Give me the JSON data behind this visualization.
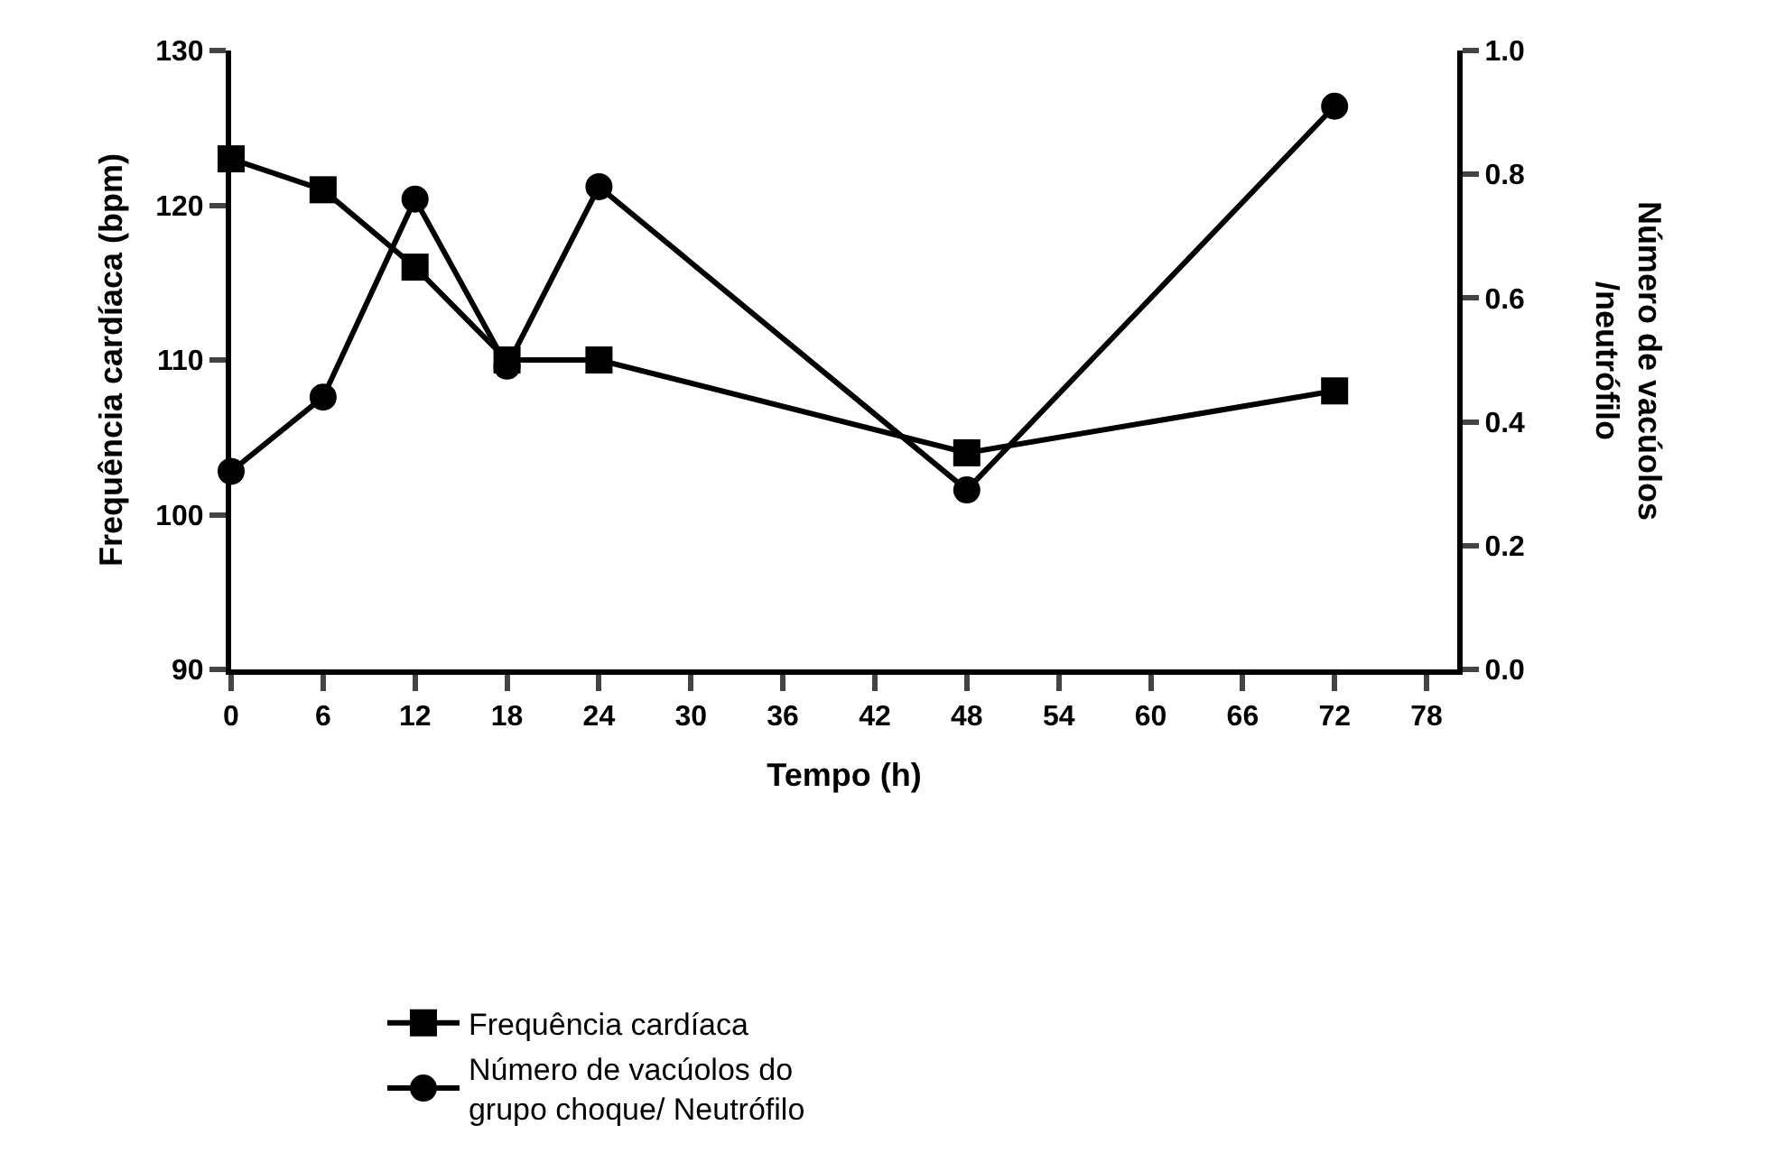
{
  "chart_data": {
    "type": "line",
    "xlabel": "Tempo (h)",
    "ylabel": "Frequência cardíaca (bpm)",
    "y2label": "Número de vacúolos\n/neutrófilo",
    "x": [
      0,
      6,
      12,
      18,
      24,
      48,
      72
    ],
    "series": [
      {
        "name": "Frequência cardíaca",
        "color": "#000000",
        "marker": "square",
        "values": [
          123,
          121,
          116,
          110,
          110,
          104,
          108
        ]
      },
      {
        "name": "Número de vacúolos do\ngrupo choque/ Neutrófilo",
        "color": "#000000",
        "marker": "circle",
        "axis": "y2",
        "values": [
          0.32,
          0.44,
          0.76,
          0.49,
          0.78,
          0.29,
          0.91
        ]
      }
    ],
    "xlim": [
      0,
      80
    ],
    "xticks": [
      0,
      6,
      12,
      18,
      24,
      30,
      36,
      42,
      48,
      54,
      60,
      66,
      72,
      78
    ],
    "ylim": [
      90,
      130
    ],
    "yticks": [
      90,
      100,
      110,
      120,
      130
    ],
    "y2lim": [
      0,
      1
    ],
    "y2ticks": [
      {
        "value": 0,
        "label": "0.0"
      },
      {
        "value": 0.2,
        "label": "0.2"
      },
      {
        "value": 0.4,
        "label": "0.4"
      },
      {
        "value": 0.6,
        "label": "0.6"
      },
      {
        "value": 0.8,
        "label": "0.8"
      },
      {
        "value": 1,
        "label": "1.0"
      }
    ],
    "grid": false,
    "legend": "bottom",
    "line_style": "solid"
  }
}
